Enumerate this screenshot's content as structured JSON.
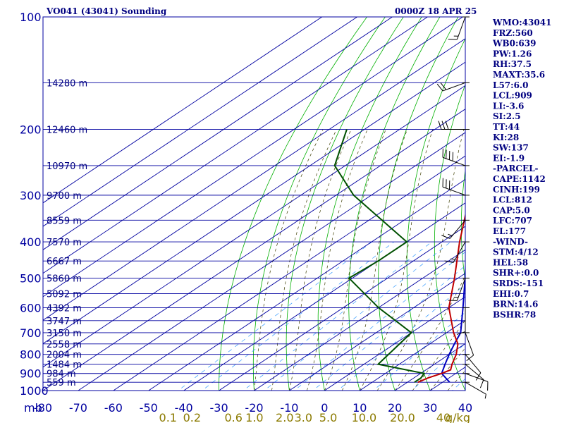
{
  "header": {
    "station": "VO041 (43041) Sounding",
    "time": "0000Z 18 APR 25"
  },
  "chart_data": {
    "type": "line",
    "chart_kind": "skew-T log-P sounding",
    "pressure_range_hpa": [
      1000,
      100
    ],
    "temp_range_c_at_1000": [
      -80,
      40
    ],
    "pressure_labels": [
      "100",
      "200",
      "300",
      "400",
      "500",
      "600",
      "700",
      "800",
      "900",
      "1000"
    ],
    "pressure_unit_label": "mb",
    "temp_labels": [
      "-80",
      "-70",
      "-60",
      "-50",
      "-40",
      "-30",
      "-20",
      "-10",
      "0",
      "10",
      "20",
      "30",
      "40"
    ],
    "mixing_ratio_labels": [
      "0.1",
      "0.2",
      "0.6",
      "1.0",
      "2.0",
      "3.0",
      "5.0",
      "10.0",
      "20.0",
      "40"
    ],
    "mixing_ratio_unit": "g/kg",
    "height_labels": [
      {
        "p": 150,
        "text": "14280 m"
      },
      {
        "p": 200,
        "text": "12460 m"
      },
      {
        "p": 250,
        "text": "10970 m"
      },
      {
        "p": 300,
        "text": "9700 m"
      },
      {
        "p": 350,
        "text": "8559 m"
      },
      {
        "p": 400,
        "text": "7570 m"
      },
      {
        "p": 450,
        "text": "6667 m"
      },
      {
        "p": 500,
        "text": "5860 m"
      },
      {
        "p": 550,
        "text": "5092 m"
      },
      {
        "p": 600,
        "text": "4392 m"
      },
      {
        "p": 650,
        "text": "3747 m"
      },
      {
        "p": 700,
        "text": "3150 m"
      },
      {
        "p": 750,
        "text": "2558 m"
      },
      {
        "p": 800,
        "text": "2004 m"
      },
      {
        "p": 850,
        "text": "1484 m"
      },
      {
        "p": 900,
        "text": "984 m"
      },
      {
        "p": 950,
        "text": "559 m"
      }
    ],
    "temperature": [
      {
        "p": 950,
        "t": 23
      },
      {
        "p": 925,
        "t": 24
      },
      {
        "p": 900,
        "t": 26
      },
      {
        "p": 880,
        "t": 27
      },
      {
        "p": 850,
        "t": 25
      },
      {
        "p": 800,
        "t": 22
      },
      {
        "p": 750,
        "t": 18
      },
      {
        "p": 700,
        "t": 12
      },
      {
        "p": 600,
        "t": 0
      },
      {
        "p": 500,
        "t": -11
      },
      {
        "p": 400,
        "t": -25
      },
      {
        "p": 300,
        "t": -42
      },
      {
        "p": 250,
        "t": -52
      },
      {
        "p": 200,
        "t": -62
      },
      {
        "p": 150,
        "t": -71
      },
      {
        "p": 120,
        "t": -76
      }
    ],
    "dewpoint": [
      {
        "p": 950,
        "t": 22
      },
      {
        "p": 925,
        "t": 22
      },
      {
        "p": 900,
        "t": 21
      },
      {
        "p": 850,
        "t": 4
      },
      {
        "p": 700,
        "t": 0
      },
      {
        "p": 600,
        "t": -20
      },
      {
        "p": 500,
        "t": -41
      },
      {
        "p": 450,
        "t": -40
      },
      {
        "p": 400,
        "t": -40
      },
      {
        "p": 300,
        "t": -75
      },
      {
        "p": 250,
        "t": -93
      },
      {
        "p": 200,
        "t": -105
      }
    ],
    "parcel": [
      {
        "p": 950,
        "t": 32
      },
      {
        "p": 900,
        "t": 26
      },
      {
        "p": 850,
        "t": 23
      },
      {
        "p": 800,
        "t": 20
      },
      {
        "p": 750,
        "t": 17
      },
      {
        "p": 700,
        "t": 14
      },
      {
        "p": 600,
        "t": 4
      },
      {
        "p": 500,
        "t": -8
      },
      {
        "p": 400,
        "t": -23
      },
      {
        "p": 300,
        "t": -42
      },
      {
        "p": 250,
        "t": -53
      },
      {
        "p": 200,
        "t": -62
      },
      {
        "p": 150,
        "t": -74
      },
      {
        "p": 120,
        "t": -80
      }
    ],
    "winds": [
      {
        "p": 100,
        "dir": 200,
        "spd": 15
      },
      {
        "p": 150,
        "dir": 250,
        "spd": 20
      },
      {
        "p": 200,
        "dir": 270,
        "spd": 30
      },
      {
        "p": 250,
        "dir": 290,
        "spd": 40
      },
      {
        "p": 300,
        "dir": 290,
        "spd": 30
      },
      {
        "p": 350,
        "dir": 220,
        "spd": 15
      },
      {
        "p": 400,
        "dir": 210,
        "spd": 15
      },
      {
        "p": 500,
        "dir": 200,
        "spd": 15
      },
      {
        "p": 600,
        "dir": 180,
        "spd": 10
      },
      {
        "p": 700,
        "dir": 160,
        "spd": 10
      },
      {
        "p": 800,
        "dir": 140,
        "spd": 10
      },
      {
        "p": 850,
        "dir": 130,
        "spd": 10
      },
      {
        "p": 900,
        "dir": 110,
        "spd": 10
      },
      {
        "p": 950,
        "dir": 120,
        "spd": 5
      }
    ],
    "colors": {
      "isobar": "#0000a0",
      "isotherm": "#0000a0",
      "dry_adiabat": "#00b000",
      "moist_adiabat": "#3d3d00",
      "mixing_ratio": "#3399ff",
      "temperature": "#c00000",
      "dewpoint": "#005000",
      "parcel": "#0000c0",
      "wind": "#000000"
    }
  },
  "indices": [
    "WMO:43041",
    "FRZ:560",
    "WB0:639",
    "PW:1.26",
    "RH:37.5",
    "MAXT:35.6",
    "L57:6.0",
    "LCL:909",
    "LI:-3.6",
    "SI:2.5",
    "TT:44",
    "KI:28",
    "SW:137",
    "EI:-1.9",
    "-PARCEL-",
    "CAPE:1142",
    "CINH:199",
    "LCL:812",
    "CAP:5.0",
    "LFC:707",
    "EL:177",
    "-WIND-",
    "STM:4/12",
    "HEL:58",
    "SHR+:0.0",
    "SRDS:-151",
    "EHI:0.7",
    "BRN:14.6",
    "BSHR:78"
  ]
}
